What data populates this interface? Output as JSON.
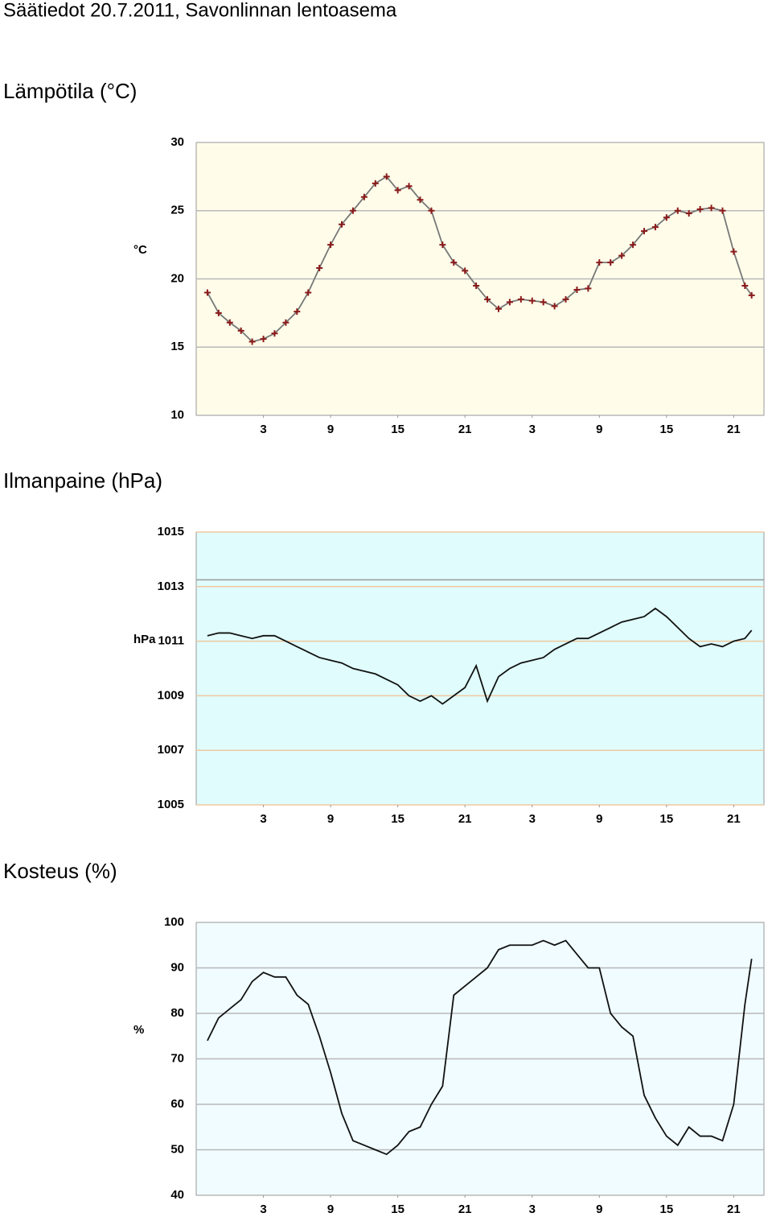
{
  "title": "Säätiedot 20.7.2011, Savonlinnan lentoasema",
  "chart_data": [
    {
      "type": "line",
      "title": "Lämpötila (°C)",
      "y_label": "°C",
      "marker": "+",
      "color": "#777777",
      "marker_color": "#8b1a1a",
      "background": "#fffdea",
      "grid_color": "#b8b8b8",
      "grid": true,
      "x": [
        1,
        2,
        3,
        4,
        5,
        6,
        7,
        8,
        9,
        10,
        11,
        12,
        13,
        14,
        15,
        16,
        17,
        18,
        19,
        20,
        21,
        22,
        23,
        24,
        25,
        26,
        27,
        28,
        29,
        30,
        31,
        32,
        33,
        34,
        35,
        36,
        37,
        38,
        39,
        40,
        41,
        42,
        43,
        44,
        45,
        46,
        47,
        48,
        49,
        49.6
      ],
      "values": [
        19.0,
        17.5,
        16.8,
        16.2,
        15.4,
        15.6,
        16.0,
        16.8,
        17.6,
        19.0,
        20.8,
        22.5,
        24.0,
        25.0,
        26.0,
        27.0,
        27.5,
        26.5,
        26.8,
        25.8,
        25.0,
        22.5,
        21.2,
        20.6,
        19.5,
        18.5,
        17.8,
        18.3,
        18.5,
        18.4,
        18.3,
        18.0,
        18.5,
        19.2,
        19.3,
        21.2,
        21.2,
        21.7,
        22.5,
        23.5,
        23.8,
        24.5,
        25.0,
        24.8,
        25.1,
        25.2,
        25.0,
        22.0,
        19.5,
        18.8
      ],
      "xlim": [
        0,
        50.7
      ],
      "xticks": [
        {
          "value": 6,
          "label": "3"
        },
        {
          "value": 12,
          "label": "9"
        },
        {
          "value": 18,
          "label": "15"
        },
        {
          "value": 24,
          "label": "21"
        },
        {
          "value": 30,
          "label": "3"
        },
        {
          "value": 36,
          "label": "9"
        },
        {
          "value": 42,
          "label": "15"
        },
        {
          "value": 48,
          "label": "21"
        }
      ],
      "ylim": [
        10,
        30
      ],
      "yticks": [
        10,
        15,
        20,
        25,
        30
      ]
    },
    {
      "type": "line",
      "title": "Ilmanpaine (hPa)",
      "y_label": "hPa",
      "color": "#111111",
      "background": "#e0fcfc",
      "grid_color": "#f0c8a0",
      "grid": true,
      "hlines": [
        1013.25
      ],
      "x": [
        1,
        2,
        3,
        4,
        5,
        6,
        7,
        8,
        9,
        10,
        11,
        12,
        13,
        14,
        15,
        16,
        17,
        18,
        19,
        20,
        21,
        22,
        23,
        24,
        25,
        26,
        27,
        28,
        29,
        30,
        31,
        32,
        33,
        34,
        35,
        36,
        37,
        38,
        39,
        40,
        41,
        42,
        43,
        44,
        45,
        46,
        47,
        48,
        49,
        49.6
      ],
      "values": [
        1011.2,
        1011.3,
        1011.3,
        1011.2,
        1011.1,
        1011.2,
        1011.2,
        1011.0,
        1010.8,
        1010.6,
        1010.4,
        1010.3,
        1010.2,
        1010.0,
        1009.9,
        1009.8,
        1009.6,
        1009.4,
        1009.0,
        1008.8,
        1009.0,
        1008.7,
        1009.0,
        1009.3,
        1010.1,
        1008.8,
        1009.7,
        1010.0,
        1010.2,
        1010.3,
        1010.4,
        1010.7,
        1010.9,
        1011.1,
        1011.1,
        1011.3,
        1011.5,
        1011.7,
        1011.8,
        1011.9,
        1012.2,
        1011.9,
        1011.5,
        1011.1,
        1010.8,
        1010.9,
        1010.8,
        1011.0,
        1011.1,
        1011.4
      ],
      "xlim": [
        0,
        50.7
      ],
      "xticks": [
        {
          "value": 6,
          "label": "3"
        },
        {
          "value": 12,
          "label": "9"
        },
        {
          "value": 18,
          "label": "15"
        },
        {
          "value": 24,
          "label": "21"
        },
        {
          "value": 30,
          "label": "3"
        },
        {
          "value": 36,
          "label": "9"
        },
        {
          "value": 42,
          "label": "15"
        },
        {
          "value": 48,
          "label": "21"
        }
      ],
      "ylim": [
        1005,
        1015
      ],
      "yticks": [
        1005,
        1007,
        1009,
        1011,
        1013,
        1015
      ]
    },
    {
      "type": "line",
      "title": "Kosteus (%)",
      "y_label": "%",
      "color": "#111111",
      "background": "#f0fcff",
      "grid_color": "#b8b8b8",
      "grid": true,
      "x": [
        1,
        2,
        3,
        4,
        5,
        6,
        7,
        8,
        9,
        10,
        11,
        12,
        13,
        14,
        15,
        16,
        17,
        18,
        19,
        20,
        21,
        22,
        23,
        24,
        25,
        26,
        27,
        28,
        29,
        30,
        31,
        32,
        33,
        34,
        35,
        36,
        37,
        38,
        39,
        40,
        41,
        42,
        43,
        44,
        45,
        46,
        47,
        48,
        49,
        49.6
      ],
      "values": [
        74,
        79,
        81,
        83,
        87,
        89,
        88,
        88,
        84,
        82,
        75,
        67,
        58,
        52,
        51,
        50,
        49,
        51,
        54,
        55,
        60,
        64,
        84,
        86,
        88,
        90,
        94,
        95,
        95,
        95,
        96,
        95,
        96,
        93,
        90,
        90,
        80,
        77,
        75,
        62,
        57,
        53,
        51,
        55,
        53,
        53,
        52,
        60,
        82,
        92
      ],
      "xlim": [
        0,
        50.7
      ],
      "xticks": [
        {
          "value": 6,
          "label": "3"
        },
        {
          "value": 12,
          "label": "9"
        },
        {
          "value": 18,
          "label": "15"
        },
        {
          "value": 24,
          "label": "21"
        },
        {
          "value": 30,
          "label": "3"
        },
        {
          "value": 36,
          "label": "9"
        },
        {
          "value": 42,
          "label": "15"
        },
        {
          "value": 48,
          "label": "21"
        }
      ],
      "ylim": [
        40,
        100
      ],
      "yticks": [
        40,
        50,
        60,
        70,
        80,
        90,
        100
      ]
    }
  ]
}
